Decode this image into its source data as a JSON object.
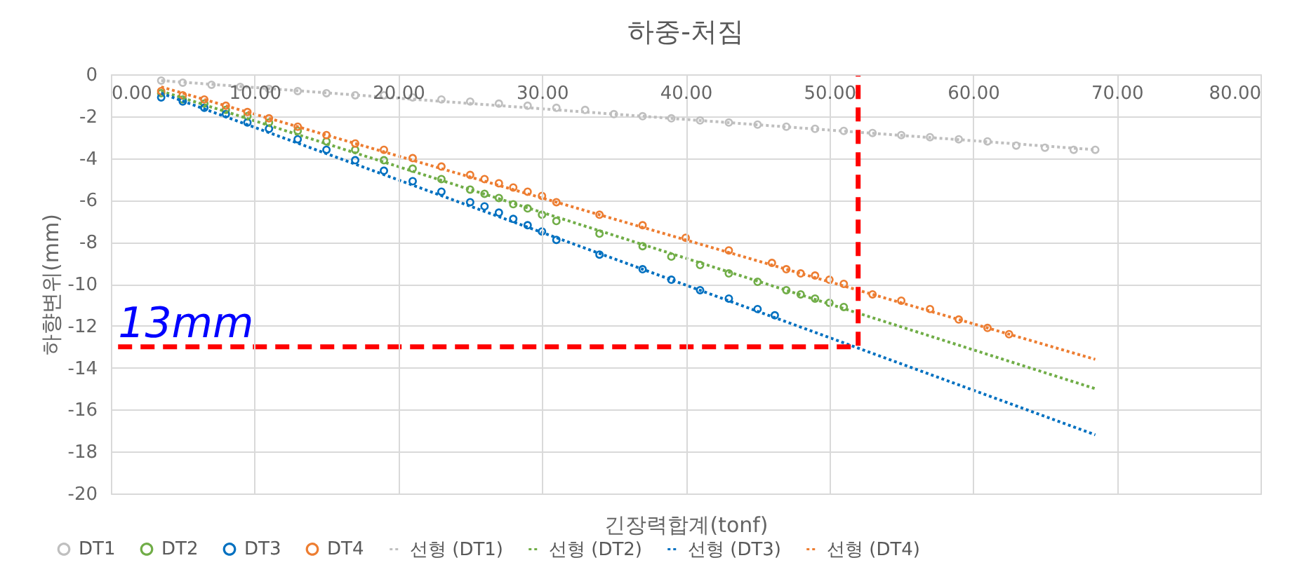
{
  "chart_data": {
    "type": "scatter",
    "title": "하중-처짐",
    "xlabel": "긴장력합계(tonf)",
    "ylabel": "하향변위(mm)",
    "xlim": [
      0,
      80
    ],
    "ylim": [
      -20,
      0
    ],
    "xticks": [
      {
        "value": 0,
        "label": "0.00"
      },
      {
        "value": 10,
        "label": "10.00"
      },
      {
        "value": 20,
        "label": "20.00"
      },
      {
        "value": 30,
        "label": "30.00"
      },
      {
        "value": 40,
        "label": "40.00"
      },
      {
        "value": 50,
        "label": "50.00"
      },
      {
        "value": 60,
        "label": "60.00"
      },
      {
        "value": 70,
        "label": "70.00"
      },
      {
        "value": 80,
        "label": "80.00"
      }
    ],
    "yticks": [
      0,
      -2,
      -4,
      -6,
      -8,
      -10,
      -12,
      -14,
      -16,
      -18,
      -20
    ],
    "grid": true,
    "legend": "bottom",
    "series": [
      {
        "name": "DT1",
        "marker": "circle",
        "color": "#bfbfbf",
        "x": [
          3.5,
          5,
          7,
          9,
          11,
          13,
          15,
          17,
          19,
          21,
          23,
          25,
          27,
          29,
          31,
          33,
          35,
          37,
          39,
          41,
          43,
          45,
          47,
          49,
          51,
          53,
          55,
          57,
          59,
          61,
          63,
          65,
          67,
          68.5
        ],
        "values": [
          -0.3,
          -0.4,
          -0.5,
          -0.6,
          -0.7,
          -0.8,
          -0.9,
          -1.0,
          -1.0,
          -1.1,
          -1.2,
          -1.3,
          -1.4,
          -1.5,
          -1.6,
          -1.7,
          -1.9,
          -2.0,
          -2.1,
          -2.2,
          -2.3,
          -2.4,
          -2.5,
          -2.6,
          -2.7,
          -2.8,
          -2.9,
          -3.0,
          -3.1,
          -3.2,
          -3.4,
          -3.5,
          -3.6,
          -3.6
        ]
      },
      {
        "name": "DT2",
        "marker": "circle",
        "color": "#70ad47",
        "x": [
          3.5,
          5,
          6.5,
          8,
          9.5,
          11,
          13,
          15,
          17,
          19,
          21,
          23,
          25,
          26,
          27,
          28,
          29,
          30,
          31,
          34,
          37,
          39,
          41,
          43,
          45,
          47,
          48,
          49,
          50,
          51
        ],
        "values": [
          -0.9,
          -1.2,
          -1.4,
          -1.7,
          -2.0,
          -2.3,
          -2.7,
          -3.2,
          -3.6,
          -4.1,
          -4.5,
          -5.0,
          -5.5,
          -5.7,
          -5.9,
          -6.2,
          -6.4,
          -6.7,
          -7.0,
          -7.6,
          -8.2,
          -8.7,
          -9.1,
          -9.5,
          -9.9,
          -10.3,
          -10.5,
          -10.7,
          -10.9,
          -11.1
        ]
      },
      {
        "name": "DT3",
        "marker": "circle",
        "color": "#0070c0",
        "x": [
          3.5,
          5,
          6.5,
          8,
          9.5,
          11,
          13,
          15,
          17,
          19,
          21,
          23,
          25,
          26,
          27,
          28,
          29,
          30,
          31,
          34,
          37,
          39,
          41,
          43,
          45,
          46.2
        ],
        "values": [
          -1.1,
          -1.3,
          -1.6,
          -1.9,
          -2.3,
          -2.6,
          -3.1,
          -3.6,
          -4.1,
          -4.6,
          -5.1,
          -5.6,
          -6.1,
          -6.3,
          -6.6,
          -6.9,
          -7.2,
          -7.5,
          -7.9,
          -8.6,
          -9.3,
          -9.8,
          -10.3,
          -10.7,
          -11.2,
          -11.5
        ]
      },
      {
        "name": "DT4",
        "marker": "circle",
        "color": "#ed7d31",
        "x": [
          3.5,
          5,
          6.5,
          8,
          9.5,
          11,
          13,
          15,
          17,
          19,
          21,
          23,
          25,
          26,
          27,
          28,
          29,
          30,
          31,
          34,
          37,
          40,
          43,
          46,
          47,
          48,
          49,
          50,
          51,
          53,
          55,
          57,
          59,
          61,
          62.5
        ],
        "values": [
          -0.8,
          -1.0,
          -1.2,
          -1.5,
          -1.8,
          -2.1,
          -2.5,
          -2.9,
          -3.3,
          -3.6,
          -4.0,
          -4.4,
          -4.8,
          -5.0,
          -5.2,
          -5.4,
          -5.6,
          -5.8,
          -6.1,
          -6.7,
          -7.2,
          -7.8,
          -8.4,
          -9.0,
          -9.3,
          -9.5,
          -9.6,
          -9.8,
          -10.0,
          -10.5,
          -10.8,
          -11.2,
          -11.7,
          -12.1,
          -12.4
        ]
      },
      {
        "name": "선형 (DT1)",
        "type": "line",
        "line_style": "dotted",
        "color": "#bfbfbf",
        "x": [
          3.5,
          68.5
        ],
        "values": [
          -0.3,
          -3.6
        ]
      },
      {
        "name": "선형 (DT2)",
        "type": "line",
        "line_style": "dotted",
        "color": "#70ad47",
        "x": [
          3.5,
          68.5
        ],
        "values": [
          -0.8,
          -15.0
        ]
      },
      {
        "name": "선형 (DT3)",
        "type": "line",
        "line_style": "dotted",
        "color": "#0070c0",
        "x": [
          3.5,
          68.5
        ],
        "values": [
          -0.9,
          -17.2
        ]
      },
      {
        "name": "선형 (DT4)",
        "type": "line",
        "line_style": "dotted",
        "color": "#ed7d31",
        "x": [
          3.5,
          68.5
        ],
        "values": [
          -0.6,
          -13.6
        ]
      },
      {
        "type": "line",
        "line_style": "dashed",
        "color": "#ff0000",
        "x": [
          0.5,
          52,
          52
        ],
        "values": [
          -13,
          -13,
          0
        ]
      }
    ],
    "annotations": [
      {
        "text": "13mm",
        "x": 0.5,
        "y": -13
      }
    ]
  }
}
